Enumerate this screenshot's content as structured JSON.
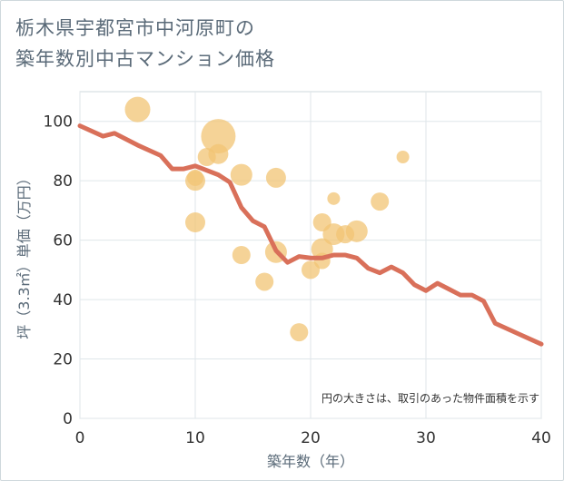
{
  "title_lines": [
    "栃木県宇都宮市中河原町の",
    "築年数別中古マンション価格"
  ],
  "chart_data": {
    "type": "scatter",
    "xlabel": "築年数（年）",
    "ylabel": "坪（3.3㎡）単価（万円）",
    "xlim": [
      0,
      40
    ],
    "ylim": [
      0,
      110
    ],
    "xticks": [
      "0",
      "10",
      "20",
      "30",
      "40"
    ],
    "yticks": [
      "0",
      "20",
      "40",
      "60",
      "80",
      "100"
    ],
    "grid": true,
    "note": "円の大きさは、取引のあった物件面積を示す",
    "colors": {
      "bubble": "#f2c474",
      "line": "#d9705a"
    },
    "bubbles": [
      {
        "x": 5,
        "y": 104,
        "size": 14
      },
      {
        "x": 12,
        "y": 95,
        "size": 19
      },
      {
        "x": 11,
        "y": 88,
        "size": 10
      },
      {
        "x": 12,
        "y": 89,
        "size": 11
      },
      {
        "x": 10,
        "y": 80,
        "size": 11
      },
      {
        "x": 10,
        "y": 81,
        "size": 9
      },
      {
        "x": 10,
        "y": 66,
        "size": 11
      },
      {
        "x": 14,
        "y": 82,
        "size": 12
      },
      {
        "x": 17,
        "y": 81,
        "size": 11
      },
      {
        "x": 14,
        "y": 55,
        "size": 10
      },
      {
        "x": 17,
        "y": 56,
        "size": 12
      },
      {
        "x": 16,
        "y": 46,
        "size": 10
      },
      {
        "x": 19,
        "y": 29,
        "size": 10
      },
      {
        "x": 20,
        "y": 50,
        "size": 10
      },
      {
        "x": 21,
        "y": 53,
        "size": 9
      },
      {
        "x": 21,
        "y": 57,
        "size": 12
      },
      {
        "x": 21,
        "y": 66,
        "size": 10
      },
      {
        "x": 22,
        "y": 62,
        "size": 12
      },
      {
        "x": 22,
        "y": 74,
        "size": 7
      },
      {
        "x": 23,
        "y": 62,
        "size": 10
      },
      {
        "x": 24,
        "y": 63,
        "size": 12
      },
      {
        "x": 26,
        "y": 73,
        "size": 10
      },
      {
        "x": 28,
        "y": 88,
        "size": 7
      }
    ],
    "trend": {
      "x": [
        0,
        2,
        3,
        5,
        7,
        8,
        9,
        10,
        12,
        13,
        14,
        15,
        16,
        17,
        18,
        19,
        20,
        21,
        22,
        23,
        24,
        25,
        26,
        27,
        28,
        29,
        30,
        31,
        32,
        33,
        34,
        35,
        36,
        38,
        40
      ],
      "y": [
        98.5,
        95,
        96,
        92,
        88.5,
        84,
        84,
        85,
        82,
        79.5,
        71,
        66.5,
        64.5,
        56.5,
        52.5,
        54.5,
        54,
        54,
        55,
        55,
        54,
        50.5,
        49,
        51,
        49,
        45,
        43,
        45.5,
        43.5,
        41.5,
        41.5,
        39.5,
        32,
        28.5,
        25
      ]
    }
  }
}
